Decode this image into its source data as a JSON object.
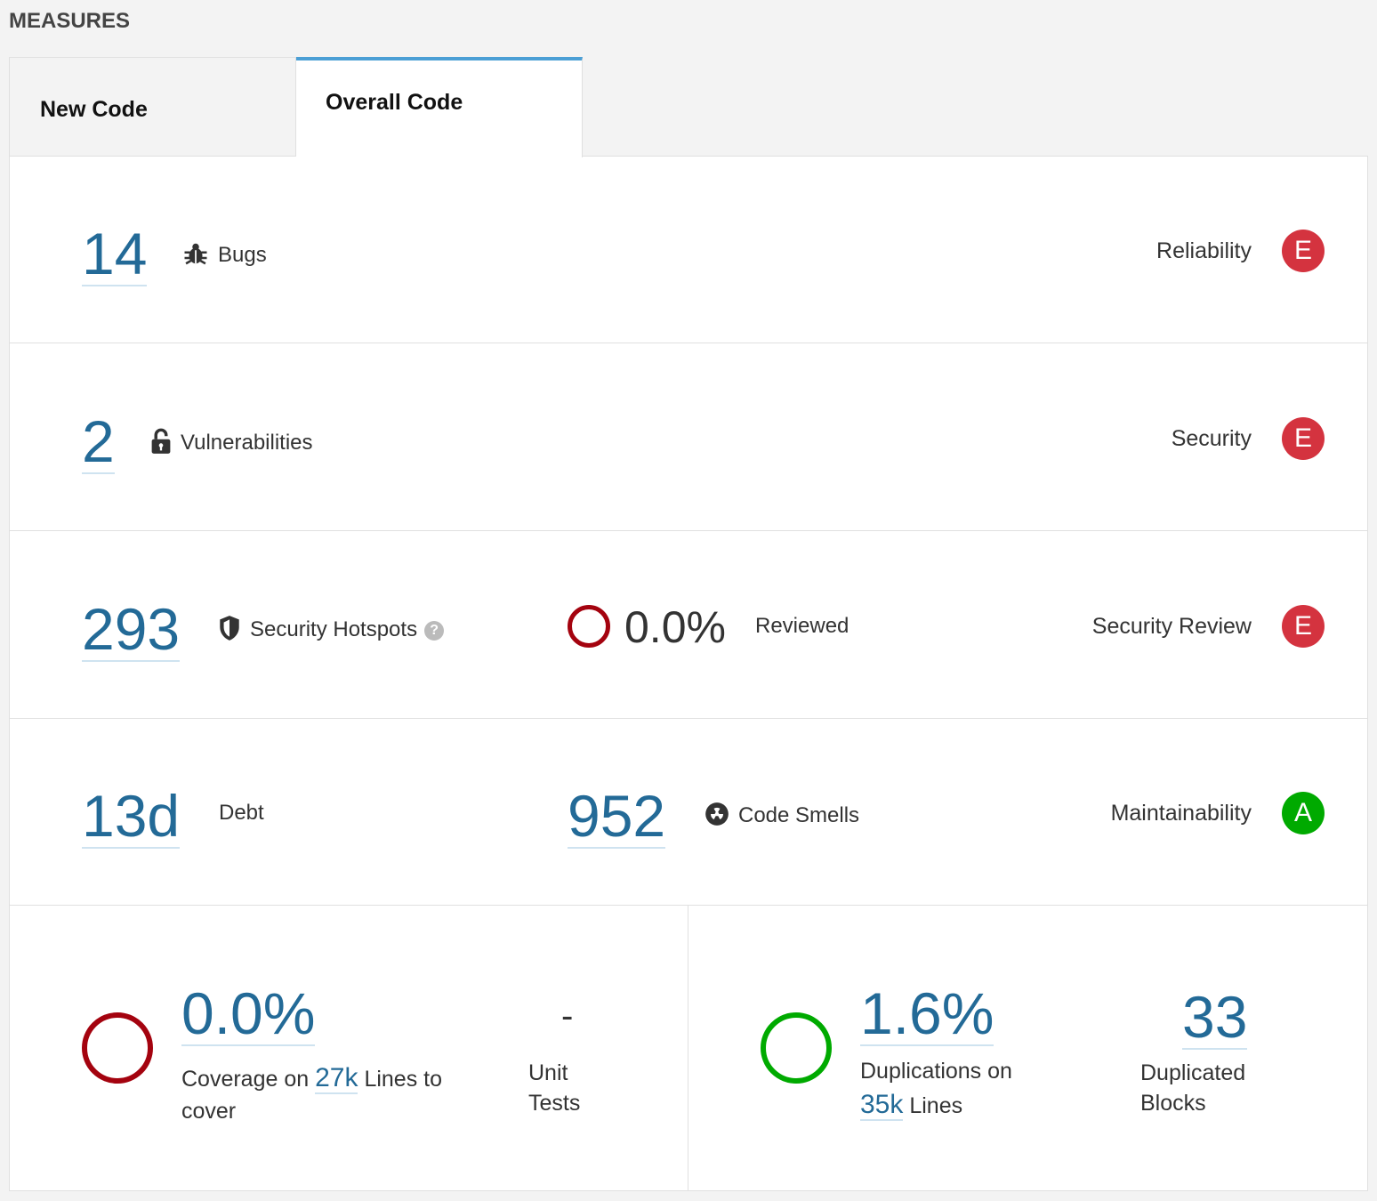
{
  "section_title": "MEASURES",
  "tabs": [
    {
      "label": "New Code",
      "active": false
    },
    {
      "label": "Overall Code",
      "active": true
    }
  ],
  "reliability": {
    "value": "14",
    "label": "Bugs",
    "rating_label": "Reliability",
    "rating": "E",
    "icon": "bug-icon"
  },
  "security": {
    "value": "2",
    "label": "Vulnerabilities",
    "rating_label": "Security",
    "rating": "E",
    "icon": "lock-icon"
  },
  "security_review": {
    "value": "293",
    "label": "Security Hotspots",
    "icon": "shield-icon",
    "help": "?",
    "reviewed_value": "0.0%",
    "reviewed_label": "Reviewed",
    "rating_label": "Security Review",
    "rating": "E"
  },
  "maintainability": {
    "debt_value": "13d",
    "debt_label": "Debt",
    "smells_value": "952",
    "smells_label": "Code Smells",
    "icon": "radioactive-icon",
    "rating_label": "Maintainability",
    "rating": "A"
  },
  "coverage": {
    "value": "0.0%",
    "label_prefix": "Coverage on",
    "lines_value": "27k",
    "label_suffix": "Lines to",
    "label_line2": "cover",
    "unit_tests_value": "-",
    "unit_tests_line1": "Unit",
    "unit_tests_line2": "Tests"
  },
  "duplications": {
    "value": "1.6%",
    "label_line1": "Duplications on",
    "lines_value": "35k",
    "label_suffix": "Lines",
    "blocks_value": "33",
    "blocks_line1": "Duplicated",
    "blocks_line2": "Blocks"
  },
  "colors": {
    "rating_e": "#d4333f",
    "rating_a": "#00aa00",
    "link": "#236a97",
    "tab_accent": "#4b9fd5",
    "coverage_ring": "#a4030f",
    "duplication_ring": "#00aa00"
  }
}
